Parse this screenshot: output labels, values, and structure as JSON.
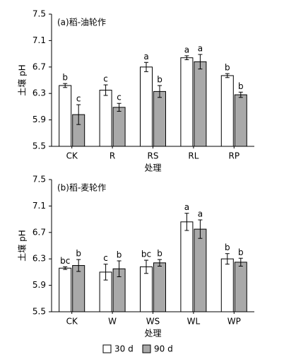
{
  "chart_data": [
    {
      "type": "bar",
      "title": "(a)稻-油轮作",
      "x_label": "处理",
      "y_label": "土壤 pH",
      "categories": [
        "CK",
        "R",
        "RS",
        "RL",
        "RP"
      ],
      "series": [
        {
          "name": "30 d",
          "color": "#ffffff",
          "values": [
            6.42,
            6.35,
            6.7,
            6.84,
            6.57
          ],
          "errors": [
            0.03,
            0.08,
            0.07,
            0.03,
            0.03
          ],
          "significance": [
            "b",
            "c",
            "a",
            "a",
            "b"
          ]
        },
        {
          "name": "90 d",
          "color": "#a9a9a9",
          "values": [
            5.98,
            6.09,
            6.33,
            6.78,
            6.28
          ],
          "errors": [
            0.15,
            0.06,
            0.09,
            0.11,
            0.04
          ],
          "significance": [
            "c",
            "c",
            "b",
            "a",
            "b"
          ]
        }
      ],
      "ylim": [
        5.5,
        7.5
      ],
      "yticks": [
        5.5,
        5.9,
        6.3,
        6.7,
        7.1,
        7.5
      ]
    },
    {
      "type": "bar",
      "title": "(b)稻-麦轮作",
      "x_label": "处理",
      "y_label": "土壤 pH",
      "categories": [
        "CK",
        "W",
        "WS",
        "WL",
        "WP"
      ],
      "series": [
        {
          "name": "30 d",
          "color": "#ffffff",
          "values": [
            6.16,
            6.1,
            6.18,
            6.86,
            6.3
          ],
          "errors": [
            0.02,
            0.12,
            0.1,
            0.13,
            0.08
          ],
          "significance": [
            "bc",
            "c",
            "bc",
            "a",
            "b"
          ]
        },
        {
          "name": "90 d",
          "color": "#a9a9a9",
          "values": [
            6.2,
            6.15,
            6.24,
            6.75,
            6.25
          ],
          "errors": [
            0.09,
            0.12,
            0.05,
            0.14,
            0.06
          ],
          "significance": [
            "b",
            "b",
            "b",
            "a",
            "b"
          ]
        }
      ],
      "ylim": [
        5.5,
        7.5
      ],
      "yticks": [
        5.5,
        5.9,
        6.3,
        6.7,
        7.1,
        7.5
      ]
    }
  ]
}
